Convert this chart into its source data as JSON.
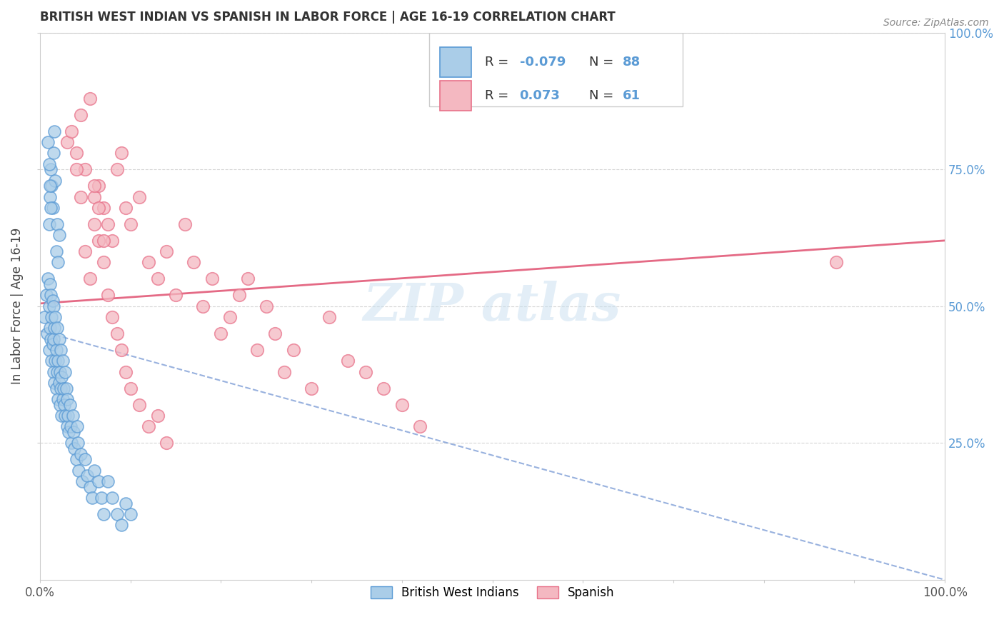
{
  "title": "BRITISH WEST INDIAN VS SPANISH IN LABOR FORCE | AGE 16-19 CORRELATION CHART",
  "source": "Source: ZipAtlas.com",
  "ylabel": "In Labor Force | Age 16-19",
  "xlim": [
    0.0,
    1.0
  ],
  "ylim": [
    0.0,
    1.0
  ],
  "bwi_color": "#aacde8",
  "bwi_edge": "#5b9bd5",
  "bwi_line_color": "#4472c4",
  "spanish_color": "#f4b8c1",
  "spanish_edge": "#e8728a",
  "spanish_line_color": "#e05070",
  "bwi_R": -0.079,
  "bwi_N": 88,
  "spanish_R": 0.073,
  "spanish_N": 61,
  "legend_label_bwi": "British West Indians",
  "legend_label_spanish": "Spanish",
  "r_n_color": "#5b9bd5",
  "label_color": "#333333",
  "source_color": "#888888",
  "background_color": "#ffffff",
  "grid_color": "#cccccc",
  "watermark_text": "ZIP atlas",
  "watermark_color": "#d0e4f0",
  "bwi_scatter_x": [
    0.005,
    0.007,
    0.008,
    0.009,
    0.01,
    0.01,
    0.011,
    0.011,
    0.012,
    0.012,
    0.013,
    0.013,
    0.014,
    0.014,
    0.015,
    0.015,
    0.015,
    0.016,
    0.016,
    0.017,
    0.017,
    0.018,
    0.018,
    0.019,
    0.019,
    0.02,
    0.02,
    0.021,
    0.021,
    0.022,
    0.022,
    0.023,
    0.023,
    0.024,
    0.024,
    0.025,
    0.025,
    0.026,
    0.027,
    0.028,
    0.028,
    0.029,
    0.03,
    0.03,
    0.031,
    0.032,
    0.033,
    0.034,
    0.035,
    0.036,
    0.037,
    0.038,
    0.04,
    0.041,
    0.042,
    0.043,
    0.045,
    0.047,
    0.05,
    0.052,
    0.055,
    0.058,
    0.06,
    0.065,
    0.068,
    0.07,
    0.075,
    0.08,
    0.085,
    0.09,
    0.095,
    0.1,
    0.01,
    0.011,
    0.012,
    0.013,
    0.014,
    0.015,
    0.016,
    0.017,
    0.018,
    0.019,
    0.02,
    0.021,
    0.009,
    0.01,
    0.011,
    0.012
  ],
  "bwi_scatter_y": [
    0.48,
    0.52,
    0.45,
    0.55,
    0.42,
    0.5,
    0.46,
    0.54,
    0.44,
    0.52,
    0.4,
    0.48,
    0.43,
    0.51,
    0.38,
    0.44,
    0.5,
    0.36,
    0.46,
    0.4,
    0.48,
    0.35,
    0.42,
    0.38,
    0.46,
    0.33,
    0.4,
    0.36,
    0.44,
    0.32,
    0.38,
    0.35,
    0.42,
    0.3,
    0.37,
    0.33,
    0.4,
    0.35,
    0.32,
    0.38,
    0.3,
    0.35,
    0.28,
    0.33,
    0.3,
    0.27,
    0.32,
    0.28,
    0.25,
    0.3,
    0.27,
    0.24,
    0.22,
    0.28,
    0.25,
    0.2,
    0.23,
    0.18,
    0.22,
    0.19,
    0.17,
    0.15,
    0.2,
    0.18,
    0.15,
    0.12,
    0.18,
    0.15,
    0.12,
    0.1,
    0.14,
    0.12,
    0.65,
    0.7,
    0.75,
    0.72,
    0.68,
    0.78,
    0.82,
    0.73,
    0.6,
    0.65,
    0.58,
    0.63,
    0.8,
    0.76,
    0.72,
    0.68
  ],
  "spanish_scatter_x": [
    0.03,
    0.035,
    0.04,
    0.045,
    0.05,
    0.055,
    0.06,
    0.065,
    0.07,
    0.075,
    0.08,
    0.085,
    0.09,
    0.095,
    0.1,
    0.11,
    0.12,
    0.13,
    0.14,
    0.15,
    0.16,
    0.17,
    0.18,
    0.19,
    0.2,
    0.21,
    0.22,
    0.23,
    0.24,
    0.25,
    0.26,
    0.27,
    0.28,
    0.3,
    0.32,
    0.34,
    0.36,
    0.38,
    0.4,
    0.42,
    0.05,
    0.055,
    0.06,
    0.065,
    0.07,
    0.075,
    0.08,
    0.085,
    0.09,
    0.095,
    0.1,
    0.11,
    0.12,
    0.13,
    0.14,
    0.06,
    0.065,
    0.07,
    0.04,
    0.045,
    0.88
  ],
  "spanish_scatter_y": [
    0.8,
    0.82,
    0.78,
    0.85,
    0.75,
    0.88,
    0.7,
    0.72,
    0.68,
    0.65,
    0.62,
    0.75,
    0.78,
    0.68,
    0.65,
    0.7,
    0.58,
    0.55,
    0.6,
    0.52,
    0.65,
    0.58,
    0.5,
    0.55,
    0.45,
    0.48,
    0.52,
    0.55,
    0.42,
    0.5,
    0.45,
    0.38,
    0.42,
    0.35,
    0.48,
    0.4,
    0.38,
    0.35,
    0.32,
    0.28,
    0.6,
    0.55,
    0.65,
    0.62,
    0.58,
    0.52,
    0.48,
    0.45,
    0.42,
    0.38,
    0.35,
    0.32,
    0.28,
    0.3,
    0.25,
    0.72,
    0.68,
    0.62,
    0.75,
    0.7,
    0.58
  ],
  "bwi_trend_x0": 0.0,
  "bwi_trend_y0": 0.455,
  "bwi_trend_x1": 1.0,
  "bwi_trend_y1": 0.0,
  "spanish_trend_x0": 0.0,
  "spanish_trend_y0": 0.505,
  "spanish_trend_x1": 1.0,
  "spanish_trend_y1": 0.62
}
